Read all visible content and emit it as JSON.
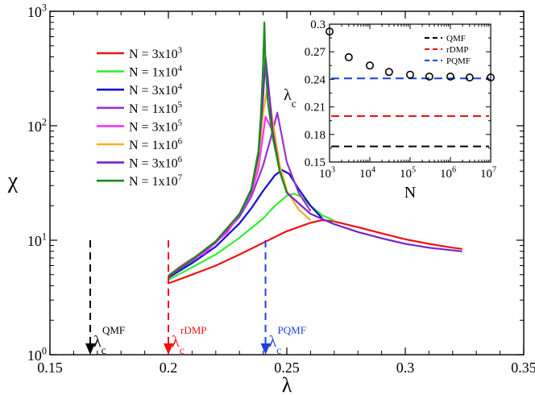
{
  "chart_data": [
    {
      "type": "line",
      "xlabel": "λ",
      "ylabel": "χ",
      "xscale": "linear",
      "yscale": "log",
      "xlim": [
        0.15,
        0.35
      ],
      "ylim_exp": [
        0,
        3
      ],
      "xticks": [
        0.15,
        0.2,
        0.25,
        0.3,
        0.35
      ],
      "xtick_labels": [
        "0.15",
        "0.2",
        "0.25",
        "0.3",
        "0.35"
      ],
      "yticks_exp": [
        0,
        1,
        2,
        3
      ],
      "ytick_label_base": "10",
      "ytick_label_exps": [
        "0",
        "1",
        "2",
        "3"
      ],
      "legend_position": "upper-left",
      "series": [
        {
          "name": "N = 3x10",
          "sup": "3",
          "color": "#ee1111",
          "x": [
            0.2,
            0.21,
            0.22,
            0.23,
            0.24,
            0.25,
            0.26,
            0.265,
            0.27,
            0.28,
            0.29,
            0.3,
            0.31,
            0.32,
            0.324
          ],
          "y": [
            4.2,
            5.0,
            6.0,
            7.5,
            9.5,
            12.0,
            14.2,
            15.0,
            14.6,
            13.0,
            11.5,
            10.2,
            9.3,
            8.6,
            8.4
          ]
        },
        {
          "name": "N = 1x10",
          "sup": "4",
          "color": "#33ee33",
          "x": [
            0.2,
            0.21,
            0.22,
            0.23,
            0.24,
            0.245,
            0.25,
            0.253,
            0.256,
            0.26,
            0.265,
            0.27
          ],
          "y": [
            4.5,
            5.8,
            7.5,
            10.5,
            15.5,
            20.0,
            24.5,
            25.5,
            24.0,
            20.0,
            16.5,
            14.8
          ]
        },
        {
          "name": "N = 3x10",
          "sup": "4",
          "color": "#1111cc",
          "x": [
            0.2,
            0.21,
            0.22,
            0.23,
            0.235,
            0.24,
            0.245,
            0.248,
            0.251,
            0.255,
            0.26,
            0.265
          ],
          "y": [
            4.7,
            6.3,
            8.8,
            14.0,
            19.0,
            27.0,
            37.0,
            41.0,
            38.0,
            28.0,
            20.0,
            15.5
          ]
        },
        {
          "name": "N = 1x10",
          "sup": "5",
          "color": "#9933cc",
          "x": [
            0.2,
            0.21,
            0.22,
            0.23,
            0.235,
            0.24,
            0.243,
            0.246,
            0.25,
            0.255,
            0.26
          ],
          "y": [
            4.8,
            6.6,
            9.5,
            16.0,
            24.0,
            45.0,
            75.0,
            130.0,
            48.0,
            26.0,
            18.0
          ]
        },
        {
          "name": "N = 3x10",
          "sup": "5",
          "color": "#ff33ff",
          "x": [
            0.2,
            0.205,
            0.21,
            0.215,
            0.22,
            0.225,
            0.23,
            0.235,
            0.238,
            0.241,
            0.244,
            0.247,
            0.25
          ],
          "y": [
            4.9,
            5.9,
            6.9,
            7.6,
            9.6,
            11.8,
            17.0,
            26.0,
            42.0,
            120.0,
            90.0,
            40.0,
            26.0
          ]
        },
        {
          "name": "N = 1x10",
          "sup": "6",
          "color": "#ffaa22",
          "x": [
            0.2,
            0.21,
            0.22,
            0.23,
            0.235,
            0.238,
            0.24,
            0.242,
            0.244,
            0.247,
            0.25,
            0.255,
            0.26
          ],
          "y": [
            4.9,
            6.8,
            9.8,
            17.0,
            27.0,
            50.0,
            130.0,
            230.0,
            110.0,
            45.0,
            27.0,
            18.5,
            15.0
          ]
        },
        {
          "name": "N = 3x10",
          "sup": "6",
          "color": "#7722cc",
          "x": [
            0.2,
            0.21,
            0.22,
            0.23,
            0.235,
            0.238,
            0.24,
            0.241,
            0.242,
            0.244,
            0.247,
            0.25,
            0.26,
            0.27,
            0.28,
            0.29,
            0.3,
            0.31,
            0.324
          ],
          "y": [
            4.8,
            6.8,
            9.7,
            17.0,
            27.0,
            55.0,
            180.0,
            400.0,
            250.0,
            90.0,
            40.0,
            26.0,
            17.0,
            13.8,
            11.8,
            10.4,
            9.3,
            8.6,
            8.0
          ]
        },
        {
          "name": "N = 1x10",
          "sup": "7",
          "color": "#1a8c1a",
          "x": [
            0.2,
            0.21,
            0.22,
            0.23,
            0.235,
            0.238,
            0.239,
            0.24,
            0.2405,
            0.241,
            0.242,
            0.244,
            0.247,
            0.25
          ],
          "y": [
            4.9,
            6.8,
            9.8,
            17.0,
            28.0,
            60.0,
            120.0,
            350.0,
            800.0,
            350.0,
            160.0,
            80.0,
            40.0,
            26.0
          ]
        }
      ],
      "markers": [
        {
          "x": 0.167,
          "color": "#000000",
          "label": "λ",
          "sub": "c",
          "sup": "QMF"
        },
        {
          "x": 0.2,
          "color": "#ee1111",
          "label": "λ",
          "sub": "c",
          "sup": "rDMP"
        },
        {
          "x": 0.241,
          "color": "#1f3fdd",
          "label": "λ",
          "sub": "c",
          "sup": "PQMF"
        }
      ]
    },
    {
      "type": "scatter",
      "inset": true,
      "xlabel": "N",
      "ylabel": "λ",
      "ylabel_sub": "c",
      "xscale": "log",
      "xlim_exp": [
        3,
        7
      ],
      "ylim": [
        0.15,
        0.3
      ],
      "yticks": [
        0.15,
        0.18,
        0.21,
        0.24,
        0.27,
        0.3
      ],
      "ytick_labels": [
        "0.15",
        "0.18",
        "0.21",
        "0.24",
        "0.27",
        "0.3"
      ],
      "xtick_label_base": "10",
      "xticks_exp": [
        3,
        4,
        5,
        6,
        7
      ],
      "xtick_label_exps": [
        "3",
        "4",
        "5",
        "6",
        "7"
      ],
      "points_logN": [
        3.0,
        3.477,
        4.0,
        4.477,
        5.0,
        5.477,
        6.0,
        6.477,
        7.0
      ],
      "points_lambda": [
        0.292,
        0.264,
        0.255,
        0.248,
        0.245,
        0.243,
        0.243,
        0.242,
        0.242
      ],
      "hlines": [
        {
          "name": "QMF",
          "value": 0.167,
          "color": "#000000"
        },
        {
          "name": "rDMP",
          "value": 0.2,
          "color": "#ee1111"
        },
        {
          "name": "PQMF",
          "value": 0.241,
          "color": "#1f3fdd"
        }
      ]
    }
  ]
}
